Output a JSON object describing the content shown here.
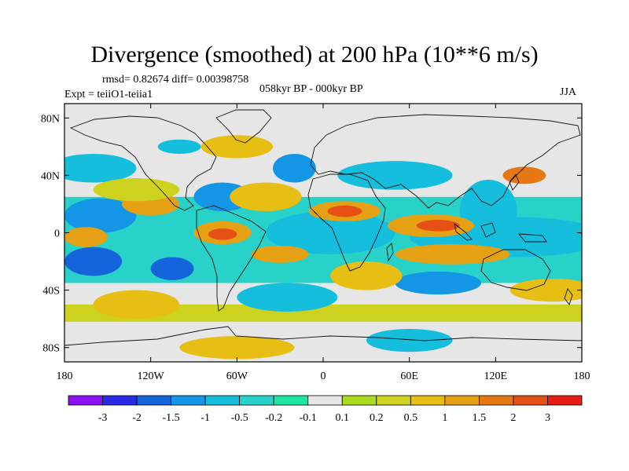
{
  "title": "Divergence (smoothed) at 200 hPa (10**6 m/s)",
  "stats": "rmsd= 0.82674 diff= 0.00398758",
  "experiment": "Expt = teiiO1-teiia1",
  "period": "058kyr BP - 000kyr BP",
  "season": "JJA",
  "map": {
    "projection": "equirectangular",
    "lon_range": [
      -180,
      180
    ],
    "lat_range": [
      -90,
      90
    ],
    "lat_ticks": [
      {
        "value": 80,
        "label": "80N"
      },
      {
        "value": 40,
        "label": "40N"
      },
      {
        "value": 0,
        "label": "0"
      },
      {
        "value": -40,
        "label": "40S"
      },
      {
        "value": -80,
        "label": "80S"
      }
    ],
    "lon_ticks": [
      {
        "value": -180,
        "label": "180"
      },
      {
        "value": -120,
        "label": "120W"
      },
      {
        "value": -60,
        "label": "60W"
      },
      {
        "value": 0,
        "label": "0"
      },
      {
        "value": 60,
        "label": "60E"
      },
      {
        "value": 120,
        "label": "120E"
      },
      {
        "value": 180,
        "label": "180"
      }
    ]
  },
  "colorbar": {
    "colors": [
      "#8a10f0",
      "#2a2ae6",
      "#1464dc",
      "#1496e6",
      "#14bedc",
      "#28d2c8",
      "#1ee6a0",
      "#e6e6e6",
      "#aadc1e",
      "#cdd21e",
      "#e6be14",
      "#e6a014",
      "#e67814",
      "#e65014",
      "#e61e14"
    ],
    "labels": [
      "-3",
      "-2",
      "-1.5",
      "-1",
      "-0.5",
      "-0.2",
      "-0.1",
      "0.1",
      "0.2",
      "0.5",
      "1",
      "1.5",
      "2",
      "3"
    ]
  },
  "field_blobs": [
    {
      "lon": -5,
      "lat": 0,
      "rlon": 12,
      "rlat": 5,
      "level": 0
    },
    {
      "lon": 2,
      "lat": 1,
      "rlon": 26,
      "rlat": 10,
      "level": 2
    },
    {
      "lon": 5,
      "lat": 0,
      "rlon": 45,
      "rlat": 15,
      "level": 4
    },
    {
      "lon": 115,
      "lat": -5,
      "rlon": 20,
      "rlat": 4,
      "level": 0
    },
    {
      "lon": 130,
      "lat": -4,
      "rlon": 55,
      "rlat": 9,
      "level": 2
    },
    {
      "lon": 130,
      "lat": -3,
      "rlon": 70,
      "rlat": 14,
      "level": 4
    },
    {
      "lon": 115,
      "lat": 15,
      "rlon": 10,
      "rlat": 14,
      "level": 2
    },
    {
      "lon": 115,
      "lat": 15,
      "rlon": 20,
      "rlat": 22,
      "level": 4
    },
    {
      "lon": -155,
      "lat": 12,
      "rlon": 25,
      "rlat": 12,
      "level": 3
    },
    {
      "lon": -160,
      "lat": -20,
      "rlon": 20,
      "rlat": 10,
      "level": 2
    },
    {
      "lon": -105,
      "lat": -25,
      "rlon": 15,
      "rlat": 8,
      "level": 2
    },
    {
      "lon": -70,
      "lat": 25,
      "rlon": 20,
      "rlat": 10,
      "level": 3
    },
    {
      "lon": -20,
      "lat": 45,
      "rlon": 15,
      "rlat": 10,
      "level": 3
    },
    {
      "lon": 50,
      "lat": 40,
      "rlon": 40,
      "rlat": 10,
      "level": 4
    },
    {
      "lon": 80,
      "lat": -35,
      "rlon": 30,
      "rlat": 8,
      "level": 3
    },
    {
      "lon": -25,
      "lat": -45,
      "rlon": 35,
      "rlat": 10,
      "level": 4
    },
    {
      "lon": -160,
      "lat": 45,
      "rlon": 30,
      "rlat": 10,
      "level": 4
    },
    {
      "lon": 60,
      "lat": -75,
      "rlon": 30,
      "rlat": 8,
      "level": 4
    },
    {
      "lon": -70,
      "lat": 0,
      "rlon": 20,
      "rlat": 8,
      "level": 11
    },
    {
      "lon": -70,
      "lat": -1,
      "rlon": 10,
      "rlat": 4,
      "level": 13
    },
    {
      "lon": 15,
      "lat": 15,
      "rlon": 25,
      "rlat": 7,
      "level": 11
    },
    {
      "lon": 15,
      "lat": 15,
      "rlon": 12,
      "rlat": 4,
      "level": 13
    },
    {
      "lon": 75,
      "lat": 5,
      "rlon": 30,
      "rlat": 8,
      "level": 11
    },
    {
      "lon": 80,
      "lat": 5,
      "rlon": 15,
      "rlat": 4,
      "level": 13
    },
    {
      "lon": 90,
      "lat": -15,
      "rlon": 40,
      "rlat": 7,
      "level": 11
    },
    {
      "lon": -165,
      "lat": -3,
      "rlon": 15,
      "rlat": 7,
      "level": 11
    },
    {
      "lon": -30,
      "lat": -15,
      "rlon": 20,
      "rlat": 6,
      "level": 11
    },
    {
      "lon": 140,
      "lat": 40,
      "rlon": 15,
      "rlat": 6,
      "level": 12
    },
    {
      "lon": -120,
      "lat": 20,
      "rlon": 20,
      "rlat": 8,
      "level": 11
    },
    {
      "lon": -130,
      "lat": -50,
      "rlon": 30,
      "rlat": 10,
      "level": 10
    },
    {
      "lon": 30,
      "lat": -30,
      "rlon": 25,
      "rlat": 10,
      "level": 10
    },
    {
      "lon": -40,
      "lat": 25,
      "rlon": 25,
      "rlat": 10,
      "level": 10
    },
    {
      "lon": 160,
      "lat": -40,
      "rlon": 30,
      "rlat": 8,
      "level": 10
    },
    {
      "lon": -60,
      "lat": -80,
      "rlon": 40,
      "rlat": 8,
      "level": 10
    },
    {
      "lon": -130,
      "lat": 30,
      "rlon": 30,
      "rlat": 8,
      "level": 9
    },
    {
      "lon": -60,
      "lat": 60,
      "rlon": 25,
      "rlat": 8,
      "level": 10
    },
    {
      "lon": -100,
      "lat": 60,
      "rlon": 15,
      "rlat": 5,
      "level": 4
    }
  ]
}
